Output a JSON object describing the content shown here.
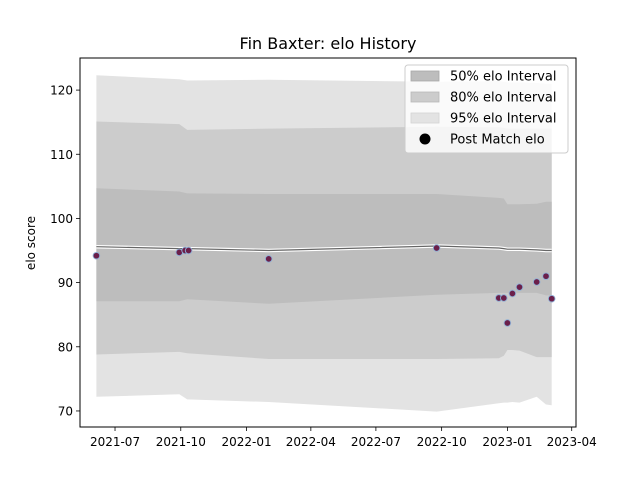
{
  "chart_data": {
    "type": "line",
    "title": "Fin Baxter: elo History",
    "xlabel": "",
    "ylabel": "elo score",
    "ylim": [
      67.5,
      125
    ],
    "xlim": [
      "2021-05-13",
      "2023-04-07"
    ],
    "yticks": [
      70,
      80,
      90,
      100,
      110,
      120
    ],
    "xticks": [
      {
        "date": "2021-07-01",
        "label": "2021-07"
      },
      {
        "date": "2021-10-01",
        "label": "2021-10"
      },
      {
        "date": "2022-01-01",
        "label": "2022-01"
      },
      {
        "date": "2022-04-01",
        "label": "2022-04"
      },
      {
        "date": "2022-07-01",
        "label": "2022-07"
      },
      {
        "date": "2022-10-01",
        "label": "2022-10"
      },
      {
        "date": "2023-01-01",
        "label": "2023-01"
      },
      {
        "date": "2023-04-01",
        "label": "2023-04"
      }
    ],
    "legend": {
      "position": "top-right",
      "entries": [
        "50% elo Interval",
        "80% elo Interval",
        "95% elo Interval",
        "Post Match elo"
      ]
    },
    "intervals": [
      {
        "name": "95% elo Interval",
        "color": "#e3e3e3",
        "x": [
          "2021-06-05",
          "2021-09-29",
          "2021-10-10",
          "2022-02-01",
          "2022-09-24",
          "2022-12-20",
          "2022-12-27",
          "2023-01-01",
          "2023-01-08",
          "2023-01-18",
          "2023-02-11",
          "2023-02-24",
          "2023-03-04"
        ],
        "upper": [
          122.3,
          121.7,
          121.5,
          121.6,
          121.3,
          121.4,
          121.3,
          121.2,
          121.2,
          121.2,
          121.1,
          121.0,
          121.0
        ],
        "lower": [
          72.2,
          72.6,
          71.8,
          71.4,
          69.9,
          71.2,
          71.3,
          71.3,
          71.4,
          71.3,
          72.2,
          71.0,
          70.9
        ]
      },
      {
        "name": "80% elo Interval",
        "color": "#cccccc",
        "x": [
          "2021-06-05",
          "2021-09-29",
          "2021-10-10",
          "2022-02-01",
          "2022-09-24",
          "2022-12-20",
          "2022-12-27",
          "2023-01-01",
          "2023-01-08",
          "2023-01-18",
          "2023-02-11",
          "2023-02-24",
          "2023-03-04"
        ],
        "upper": [
          115.1,
          114.7,
          113.8,
          114.0,
          114.3,
          114.2,
          114.1,
          114.0,
          114.0,
          114.0,
          114.0,
          114.0,
          114.0
        ],
        "lower": [
          78.8,
          79.2,
          79.0,
          78.1,
          78.1,
          78.2,
          78.6,
          79.5,
          79.5,
          79.4,
          78.4,
          78.4,
          78.4
        ]
      },
      {
        "name": "50% elo Interval",
        "color": "#bdbdbd",
        "x": [
          "2021-06-05",
          "2021-09-29",
          "2021-10-10",
          "2022-02-01",
          "2022-09-24",
          "2022-12-20",
          "2022-12-27",
          "2023-01-01",
          "2023-01-08",
          "2023-01-18",
          "2023-02-11",
          "2023-02-24",
          "2023-03-04"
        ],
        "upper": [
          104.7,
          104.2,
          103.9,
          103.8,
          103.8,
          103.2,
          103.1,
          102.2,
          102.2,
          102.2,
          102.3,
          102.6,
          102.6
        ],
        "lower": [
          87.1,
          87.1,
          87.4,
          86.7,
          88.1,
          88.4,
          88.4,
          88.4,
          88.4,
          88.4,
          88.4,
          88.0,
          88.0
        ]
      }
    ],
    "mean_line": {
      "x": [
        "2021-06-05",
        "2021-09-29",
        "2021-10-10",
        "2022-02-01",
        "2022-09-24",
        "2022-12-20",
        "2022-12-27",
        "2023-01-01",
        "2023-01-08",
        "2023-01-18",
        "2023-02-11",
        "2023-02-24",
        "2023-03-04"
      ],
      "y": [
        95.6,
        95.3,
        95.3,
        95.0,
        95.7,
        95.4,
        95.3,
        95.2,
        95.2,
        95.2,
        95.1,
        95.0,
        95.0
      ]
    },
    "series": [
      {
        "name": "Post Match elo",
        "color": "#6b1f4a",
        "points": [
          {
            "x": "2021-06-05",
            "y": 94.2
          },
          {
            "x": "2021-09-29",
            "y": 94.7
          },
          {
            "x": "2021-10-07",
            "y": 95.0
          },
          {
            "x": "2021-10-12",
            "y": 95.0
          },
          {
            "x": "2022-02-01",
            "y": 93.7
          },
          {
            "x": "2022-09-24",
            "y": 95.4
          },
          {
            "x": "2022-12-20",
            "y": 87.6
          },
          {
            "x": "2022-12-27",
            "y": 87.6
          },
          {
            "x": "2023-01-01",
            "y": 83.7
          },
          {
            "x": "2023-01-08",
            "y": 88.3
          },
          {
            "x": "2023-01-18",
            "y": 89.3
          },
          {
            "x": "2023-02-11",
            "y": 90.1
          },
          {
            "x": "2023-02-24",
            "y": 91.0
          },
          {
            "x": "2023-03-04",
            "y": 87.5
          }
        ]
      }
    ]
  }
}
